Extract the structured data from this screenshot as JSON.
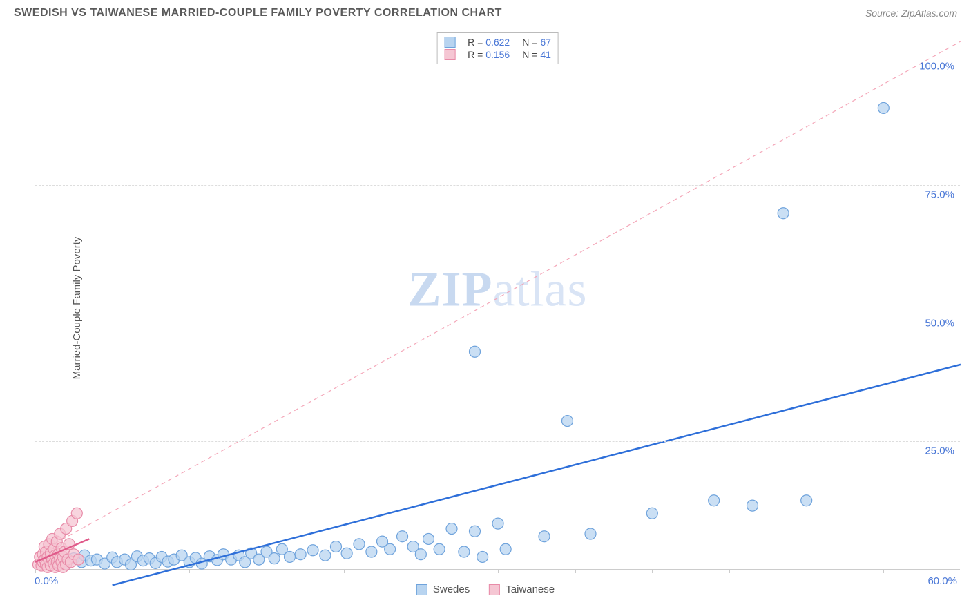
{
  "title": "SWEDISH VS TAIWANESE MARRIED-COUPLE FAMILY POVERTY CORRELATION CHART",
  "source": "Source: ZipAtlas.com",
  "watermark": {
    "bold": "ZIP",
    "rest": "atlas"
  },
  "y_axis": {
    "label": "Married-Couple Family Poverty"
  },
  "x_axis": {
    "min_label": "0.0%",
    "max_label": "60.0%"
  },
  "chart": {
    "type": "scatter",
    "xlim": [
      0,
      60
    ],
    "ylim": [
      0,
      105
    ],
    "y_ticks": [
      {
        "value": 25,
        "label": "25.0%"
      },
      {
        "value": 50,
        "label": "50.0%"
      },
      {
        "value": 75,
        "label": "75.0%"
      },
      {
        "value": 100,
        "label": "100.0%"
      }
    ],
    "x_tick_positions": [
      0,
      5,
      10,
      15,
      20,
      25,
      30,
      35,
      40,
      45,
      50,
      55,
      60
    ],
    "background_color": "#ffffff",
    "grid_color": "#dddddd",
    "marker_radius": 8,
    "marker_stroke_width": 1.2,
    "trend_line_width": 2.5,
    "reference_line_color": "#f4a6b8",
    "reference_line_dash": "6,5",
    "reference_line_width": 1.2,
    "reference_line": {
      "x1": 0,
      "y1": 3,
      "x2": 60,
      "y2": 103
    },
    "series": [
      {
        "name": "Swedes",
        "fill": "#b8d4f0",
        "stroke": "#6fa3dc",
        "trend_color": "#2e6fd9",
        "trend": {
          "x1": 5,
          "y1": -3,
          "x2": 60,
          "y2": 40
        },
        "stats": {
          "R": "0.622",
          "N": "67"
        },
        "points": [
          [
            1.0,
            2.0
          ],
          [
            1.4,
            1.2
          ],
          [
            1.8,
            2.5
          ],
          [
            2.0,
            1.0
          ],
          [
            2.5,
            2.2
          ],
          [
            3.0,
            1.5
          ],
          [
            3.2,
            2.8
          ],
          [
            3.6,
            1.8
          ],
          [
            4.0,
            2.0
          ],
          [
            4.5,
            1.2
          ],
          [
            5.0,
            2.4
          ],
          [
            5.3,
            1.5
          ],
          [
            5.8,
            2.0
          ],
          [
            6.2,
            1.0
          ],
          [
            6.6,
            2.6
          ],
          [
            7.0,
            1.8
          ],
          [
            7.4,
            2.2
          ],
          [
            7.8,
            1.3
          ],
          [
            8.2,
            2.5
          ],
          [
            8.6,
            1.6
          ],
          [
            9.0,
            2.0
          ],
          [
            9.5,
            2.8
          ],
          [
            10.0,
            1.5
          ],
          [
            10.4,
            2.3
          ],
          [
            10.8,
            1.2
          ],
          [
            11.3,
            2.6
          ],
          [
            11.8,
            1.9
          ],
          [
            12.2,
            3.0
          ],
          [
            12.7,
            2.0
          ],
          [
            13.2,
            2.8
          ],
          [
            13.6,
            1.5
          ],
          [
            14.0,
            3.2
          ],
          [
            14.5,
            2.0
          ],
          [
            15.0,
            3.5
          ],
          [
            15.5,
            2.2
          ],
          [
            16.0,
            4.0
          ],
          [
            16.5,
            2.5
          ],
          [
            17.2,
            3.0
          ],
          [
            18.0,
            3.8
          ],
          [
            18.8,
            2.8
          ],
          [
            19.5,
            4.5
          ],
          [
            20.2,
            3.2
          ],
          [
            21.0,
            5.0
          ],
          [
            21.8,
            3.5
          ],
          [
            22.5,
            5.5
          ],
          [
            23.0,
            4.0
          ],
          [
            23.8,
            6.5
          ],
          [
            24.5,
            4.5
          ],
          [
            25.0,
            3.0
          ],
          [
            25.5,
            6.0
          ],
          [
            26.2,
            4.0
          ],
          [
            27.0,
            8.0
          ],
          [
            27.8,
            3.5
          ],
          [
            28.5,
            7.5
          ],
          [
            29.0,
            2.5
          ],
          [
            30.0,
            9.0
          ],
          [
            30.5,
            4.0
          ],
          [
            33.0,
            6.5
          ],
          [
            34.5,
            29.0
          ],
          [
            36.0,
            7.0
          ],
          [
            40.0,
            11.0
          ],
          [
            44.0,
            13.5
          ],
          [
            46.5,
            12.5
          ],
          [
            48.5,
            69.5
          ],
          [
            50.0,
            13.5
          ],
          [
            55.0,
            90.0
          ],
          [
            28.5,
            42.5
          ]
        ]
      },
      {
        "name": "Taiwanese",
        "fill": "#f5c6d3",
        "stroke": "#e88ba8",
        "trend_color": "#e05a8a",
        "trend": {
          "x1": 0,
          "y1": 1.5,
          "x2": 3.5,
          "y2": 6
        },
        "stats": {
          "R": "0.156",
          "N": "41"
        },
        "points": [
          [
            0.2,
            1.0
          ],
          [
            0.3,
            2.5
          ],
          [
            0.4,
            0.8
          ],
          [
            0.5,
            3.0
          ],
          [
            0.5,
            1.5
          ],
          [
            0.6,
            4.5
          ],
          [
            0.6,
            2.0
          ],
          [
            0.7,
            1.0
          ],
          [
            0.7,
            3.5
          ],
          [
            0.8,
            0.5
          ],
          [
            0.8,
            2.5
          ],
          [
            0.9,
            5.0
          ],
          [
            0.9,
            1.8
          ],
          [
            1.0,
            0.8
          ],
          [
            1.0,
            3.2
          ],
          [
            1.1,
            6.0
          ],
          [
            1.1,
            2.0
          ],
          [
            1.2,
            1.2
          ],
          [
            1.2,
            4.0
          ],
          [
            1.3,
            0.5
          ],
          [
            1.3,
            2.8
          ],
          [
            1.4,
            1.5
          ],
          [
            1.4,
            5.5
          ],
          [
            1.5,
            3.0
          ],
          [
            1.5,
            0.8
          ],
          [
            1.6,
            2.2
          ],
          [
            1.6,
            7.0
          ],
          [
            1.7,
            1.5
          ],
          [
            1.7,
            4.2
          ],
          [
            1.8,
            2.5
          ],
          [
            1.8,
            0.5
          ],
          [
            1.9,
            3.5
          ],
          [
            2.0,
            1.0
          ],
          [
            2.0,
            8.0
          ],
          [
            2.1,
            2.0
          ],
          [
            2.2,
            5.0
          ],
          [
            2.3,
            1.5
          ],
          [
            2.4,
            9.5
          ],
          [
            2.5,
            3.0
          ],
          [
            2.7,
            11.0
          ],
          [
            2.8,
            2.0
          ]
        ]
      }
    ]
  },
  "legend_bottom": [
    {
      "label": "Swedes",
      "fill": "#b8d4f0",
      "stroke": "#6fa3dc"
    },
    {
      "label": "Taiwanese",
      "fill": "#f5c6d3",
      "stroke": "#e88ba8"
    }
  ]
}
